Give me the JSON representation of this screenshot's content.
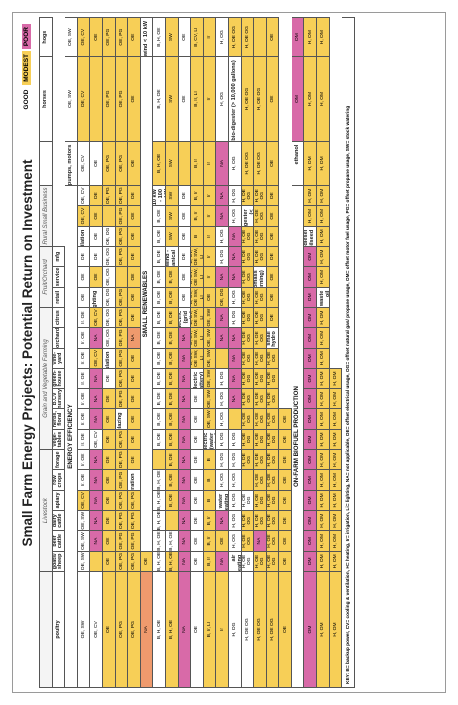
{
  "title": "Small Farm Energy Projects: Potential Return on Investment",
  "legend": {
    "good": "GOOD",
    "modest": "MODEST",
    "poor": "POOR",
    "colors": {
      "good": "#ffffff",
      "modest": "#f7cf57",
      "poor": "#d86aa8"
    }
  },
  "groups": [
    {
      "label": "",
      "span": 1
    },
    {
      "label": "Livestock",
      "span": 6
    },
    {
      "label": "Grain and Vegetable Farming",
      "span": 7
    },
    {
      "label": "Fruit/Orchard",
      "span": 3
    },
    {
      "label": "Rural Small Business",
      "span": 3
    }
  ],
  "columns": [
    "",
    "horses",
    "hogs",
    "poultry",
    "goats/ sheep",
    "beef cattle",
    "dairy cattle",
    "apiary",
    "row crops",
    "forage",
    "vege- tables",
    "herbs, floral",
    "B.CV nursery",
    "green- house",
    "vine- yard",
    "orchard",
    "citrus",
    "retail",
    "service",
    "mfg"
  ],
  "sections": [
    {
      "name": "ENERGY EFFICIENCY",
      "rows": [
        {
          "label": "pumps, motors",
          "cells": [
            "OE, SW",
            "OE, SW",
            "OE, SW",
            "OE, SW",
            "OE, SW",
            "OE, SW",
            "OE, CV",
            "Ir. OE",
            "Ir. OE",
            "Ir. OE",
            "Ir. OE",
            "Ir. OE",
            "Ir. OE",
            "Ir. OE",
            "Ir. OE",
            "Ir. OE",
            "OE",
            "OE",
            "OE"
          ],
          "ratings": [
            "g",
            "g",
            "g",
            "g",
            "g",
            "g",
            "m",
            "g",
            "g",
            "g",
            "g",
            "g",
            "g",
            "g",
            "g",
            "g",
            "g",
            "g",
            "g"
          ]
        },
        {
          "label": "ventilation",
          "cells": [
            "OE, CV",
            "OE, CV",
            "OE, CV",
            "OE, CV",
            "OE, CV",
            "OE, CV",
            "",
            "NA",
            "NA",
            "NA",
            "NA",
            "NA",
            "OE, CV",
            "NA",
            "NA",
            "NA",
            "OE, CV",
            "NA",
            "OE, CV"
          ],
          "ratings": [
            "m",
            "g",
            "g",
            "m",
            "m",
            "g",
            "m",
            "p",
            "p",
            "p",
            "p",
            "p",
            "g",
            "p",
            "p",
            "p",
            "m",
            "p",
            "m"
          ]
        },
        {
          "label": "lighting",
          "cells": [
            "OE",
            "OE",
            "OE",
            "OE",
            "OE",
            "OE",
            "",
            "OE",
            "OE",
            "OE",
            "OE",
            "OE",
            "OE",
            "OE",
            "OE",
            "OE",
            "OE",
            "OE",
            "OE"
          ],
          "ratings": [
            "m",
            "g",
            "g",
            "m",
            "m",
            "g",
            "m",
            "m",
            "m",
            "m",
            "m",
            "m",
            "m",
            "m",
            "m",
            "m",
            "m",
            "m",
            "g"
          ]
        },
        {
          "label": "insulation",
          "cells": [
            "OE, OG",
            "OE, OG",
            "OE, OG",
            "OE, OG",
            "OE, OG",
            "OE, OG",
            "",
            "OE, PG",
            "OE, PG",
            "OE, PG",
            "OE, PG",
            "OE, PG",
            "OE, PG",
            "OE, PG",
            "OE, PG",
            "OE, PG",
            "OE, PG",
            "OE, PG",
            "OE, PG"
          ],
          "ratings": [
            "g",
            "g",
            "g",
            "g",
            "g",
            "g",
            "m",
            "m",
            "m",
            "m",
            "m",
            "m",
            "m",
            "m",
            "m",
            "m",
            "m",
            "m",
            "m"
          ]
        },
        {
          "label": "glazing",
          "cells": [
            "OE, PG",
            "OE, PG",
            "OE, PG",
            "OE, PG",
            "OE, PG",
            "OE, PG",
            "",
            "OE, PG",
            "OE, PG",
            "OE, PG",
            "OE, PG",
            "OE, PG",
            "OE, PG",
            "OE, PG",
            "OE, PG",
            "OE, PG",
            "OE, PG",
            "OE, PG",
            "OE, PG"
          ],
          "ratings": [
            "m",
            "m",
            "m",
            "m",
            "m",
            "m",
            "m",
            "m",
            "m",
            "m",
            "m",
            "m",
            "m",
            "m",
            "m",
            "m",
            "m",
            "m",
            "m"
          ]
        },
        {
          "label": "refrigeration",
          "cells": [
            "OE",
            "OE",
            "OE",
            "OE",
            "OE",
            "OE",
            "NA",
            "OE",
            "OE",
            "OE",
            "OE",
            "OE",
            "OE",
            "OE",
            "OE",
            "OE",
            "OE",
            "NA",
            "OE"
          ],
          "ratings": [
            "m",
            "m",
            "m",
            "m",
            "m",
            "m",
            "o",
            "m",
            "m",
            "m",
            "m",
            "m",
            "m",
            "m",
            "m",
            "m",
            "m",
            "o",
            "m"
          ]
        }
      ]
    },
    {
      "name": "SMALL RENEWABLES",
      "rows": [
        {
          "label": "wind < 10 kW",
          "cells": [
            "B, H, OE",
            "B, H, OE",
            "B, H, OE",
            "B, H, OE",
            "B, H, OE",
            "B, H, OE",
            "",
            "B, OE",
            "B, OE",
            "B, OE",
            "B, OE",
            "B, OE",
            "B, OE",
            "B, OE",
            "B, OE",
            "B, OE",
            "B, OE",
            "B, OE",
            "B, OE"
          ],
          "ratings": [
            "g",
            "g",
            "g",
            "g",
            "g",
            "g",
            "m",
            "g",
            "g",
            "g",
            "g",
            "g",
            "g",
            "g",
            "g",
            "g",
            "g",
            "g",
            "g"
          ]
        },
        {
          "label": "wind 10 kW - 100 kW",
          "cells": [
            "B, H, OE",
            "B, H, OE",
            "B, H, OE",
            "B, H, OE",
            "B, H, OE",
            "B, H, OE",
            "",
            "B, OE",
            "B, OE",
            "B, OE",
            "B, OE",
            "B, OE",
            "B, OE",
            "B, OE",
            "B, OE",
            "B, OE",
            "B, OE",
            "B, OE",
            "B, OE"
          ],
          "ratings": [
            "m",
            "g",
            "g",
            "m",
            "m",
            "g",
            "m",
            "m",
            "m",
            "m",
            "m",
            "m",
            "m",
            "m",
            "m",
            "m",
            "m",
            "m",
            "m"
          ]
        },
        {
          "label": "wind - mechanical",
          "cells": [
            "SW",
            "SW",
            "SW",
            "SW",
            "SW",
            "SW",
            "NA",
            "NA",
            "NA",
            "NA",
            "NA",
            "NA",
            "NA",
            "NA",
            "NA",
            "NA",
            "NA",
            "NA",
            "NA"
          ],
          "ratings": [
            "m",
            "m",
            "m",
            "m",
            "m",
            "m",
            "p",
            "p",
            "p",
            "p",
            "p",
            "p",
            "p",
            "p",
            "p",
            "p",
            "p",
            "p",
            "p"
          ]
        },
        {
          "label": "solar electric (grid tie)",
          "cells": [
            "OE",
            "OE",
            "OE",
            "OE",
            "OE",
            "OE",
            "",
            "OE",
            "OE",
            "OE",
            "OE",
            "OE",
            "OE",
            "OE",
            "OE",
            "OE",
            "OE",
            "OE",
            "OE"
          ],
          "ratings": [
            "g",
            "g",
            "g",
            "g",
            "g",
            "g",
            "m",
            "g",
            "g",
            "g",
            "g",
            "g",
            "g",
            "g",
            "g",
            "g",
            "g",
            "g",
            "g"
          ]
        },
        {
          "label": "solar electric (battery)",
          "cells": [
            "B, CV, OE SW, LI",
            "B, CV, OE SW, LI",
            "B, CV, OE SW, LI",
            "B, CV, OE SW, LI",
            "B, CV, OE SW, LI",
            "B, CV, OE SW, LI",
            "B",
            "B, Ir",
            "B, Ir",
            "B, Ir",
            "B, Ir, LI",
            "B, CV, LI",
            "B, Ir, LI",
            "B, Ir",
            "B, Ir",
            "B, Ir",
            "B",
            "B",
            "B"
          ],
          "ratings": [
            "m",
            "m",
            "m",
            "m",
            "m",
            "m",
            "m",
            "m",
            "m",
            "m",
            "m",
            "m",
            "m",
            "m",
            "m",
            "m",
            "m",
            "m",
            "m"
          ]
        },
        {
          "label": "solar electric (water pumping)",
          "cells": [
            "OE, SW",
            "OE, SW",
            "OE, SW",
            "OE, SW",
            "OE, SW",
            "OE, SW",
            "OE",
            "Ir",
            "Ir",
            "Ir",
            "Ir",
            "Ir",
            "Ir",
            "Ir",
            "Ir",
            "Ir",
            "NA",
            "OE",
            "NA"
          ],
          "ratings": [
            "m",
            "m",
            "m",
            "m",
            "m",
            "m",
            "m",
            "m",
            "m",
            "m",
            "m",
            "m",
            "m",
            "m",
            "m",
            "m",
            "p",
            "m",
            "p"
          ]
        },
        {
          "label": "solar water heating",
          "cells": [
            "H, OG",
            "H, OG",
            "H, OG",
            "H, OG",
            "H, OG",
            "H, OG",
            "",
            "NA",
            "NA",
            "OE, OG",
            "NA",
            "H, OG",
            "H, OG",
            "NA",
            "NA",
            "NA",
            "H, OG",
            "H, OG",
            "H, OG"
          ],
          "ratings": [
            "g",
            "g",
            "g",
            "g",
            "g",
            "g",
            "m",
            "p",
            "p",
            "m",
            "p",
            "g",
            "g",
            "p",
            "p",
            "p",
            "g",
            "g",
            "g"
          ]
        },
        {
          "label": "solar air heating",
          "cells": [
            "H, OG",
            "H, OG",
            "H, OG",
            "H, OG",
            "H, OG",
            "H, OG",
            "",
            "NA",
            "NA",
            "NA",
            "NA",
            "H, OG",
            "H, OG",
            "NA",
            "NA",
            "NA",
            "H, OG",
            "H, OG",
            "H, OG"
          ],
          "ratings": [
            "g",
            "g",
            "g",
            "g",
            "g",
            "g",
            "m",
            "p",
            "p",
            "p",
            "p",
            "g",
            "g",
            "p",
            "p",
            "p",
            "g",
            "g",
            "g"
          ]
        },
        {
          "label": "bio-digester (> 10,000 gallons)",
          "cells": [
            "H, OE OG",
            "H, OE OG",
            "H, OE OG",
            "H, OE OG",
            "H, OE OG",
            "H, OE OG",
            "",
            "H, OE OG",
            "H, OE OG",
            "H, OE OG",
            "H, OE OG",
            "H, OE OG",
            "H, OE OG",
            "H, OE OG",
            "H, OE OG",
            "H, OE OG",
            "H, OE OG",
            "H, OE OG",
            "H, OE OG"
          ],
          "ratings": [
            "m",
            "g",
            "g",
            "m",
            "m",
            "g",
            "m",
            "m",
            "m",
            "m",
            "m",
            "m",
            "m",
            "m",
            "m",
            "m",
            "m",
            "m",
            "m"
          ]
        },
        {
          "label": "micro-scale bio-digester (< 10,000 gallons)",
          "cells": [
            "H, OE OG",
            "H, OE OG",
            "H, OE OG",
            "H, OE OG",
            "H, OE OG",
            "H, OE OG",
            "NA",
            "H, OE OG",
            "H, OE OG",
            "H, OE OG",
            "H, OE OG",
            "H, OE OG",
            "H, OE OG",
            "H, OE OG",
            "H, OE OG",
            "H, OE OG",
            "H, OE OG",
            "H, OE OG",
            "H, OE OG"
          ],
          "ratings": [
            "m",
            "m",
            "m",
            "m",
            "m",
            "m",
            "p",
            "m",
            "m",
            "m",
            "m",
            "m",
            "m",
            "m",
            "m",
            "m",
            "m",
            "m",
            "m"
          ]
        },
        {
          "label": "biomass (burning)",
          "cells": [
            "H, OE OG",
            "H, OE OG",
            "H, OE OG",
            "H, OE OG",
            "H, OE OG",
            "H, OE OG",
            "",
            "H, OE OG",
            "H, OE OG",
            "H, OE OG",
            "H, OE OG",
            "H, OE OG",
            "H, OE OG",
            "H, OE OG",
            "H, OE OG",
            "H, OE OG",
            "H, OE OG",
            "H, OE OG",
            "H, OE OG"
          ],
          "ratings": [
            "m",
            "m",
            "m",
            "m",
            "m",
            "m",
            "m",
            "m",
            "m",
            "m",
            "m",
            "m",
            "m",
            "m",
            "m",
            "m",
            "m",
            "m",
            "m"
          ]
        },
        {
          "label": "small hydro",
          "cells": [
            "OE",
            "OE",
            "OE",
            "OE",
            "OE",
            "OE",
            "OE",
            "OE",
            "OE",
            "OE",
            "OE",
            "OE",
            "OE",
            "OE",
            "OE",
            "OE",
            "OE",
            "OE",
            "OE"
          ],
          "ratings": [
            "m",
            "m",
            "m",
            "m",
            "m",
            "m",
            "m",
            "m",
            "m",
            "m",
            "m",
            "m",
            "m",
            "m",
            "m",
            "m",
            "m",
            "m",
            "m"
          ]
        }
      ]
    },
    {
      "name": "ON-FARM BIOFUEL PRODUCTION",
      "rows": [
        {
          "label": "ethanol",
          "cells": [
            "OM",
            "OM",
            "OM",
            "OM",
            "OM",
            "OM",
            "OM",
            "OM",
            "OM",
            "OM",
            "OM",
            "OM",
            "OM",
            "OM",
            "OM",
            "OM",
            "OM",
            "OM",
            "OM"
          ],
          "ratings": [
            "p",
            "p",
            "p",
            "p",
            "p",
            "p",
            "p",
            "p",
            "p",
            "p",
            "p",
            "p",
            "p",
            "p",
            "p",
            "p",
            "p",
            "p",
            "p"
          ]
        },
        {
          "label": "biodiesel - oilseed",
          "cells": [
            "H, OM",
            "H, OM",
            "H, OM",
            "H, OM",
            "H, OM",
            "H, OM",
            "H, OM",
            "H, OM",
            "H, OM",
            "H, OM",
            "H, OM",
            "H, OM",
            "H, OM",
            "H, OM",
            "H, OM",
            "H, OM",
            "H, OM",
            "H, OM",
            "H, OM"
          ],
          "ratings": [
            "m",
            "m",
            "m",
            "m",
            "m",
            "m",
            "m",
            "m",
            "m",
            "m",
            "m",
            "m",
            "m",
            "m",
            "m",
            "m",
            "m",
            "m",
            "m"
          ]
        },
        {
          "label": "biodiesel - waste oil",
          "cells": [
            "H, OM",
            "H, OM",
            "H, OM",
            "H, OM",
            "H, OM",
            "H, OM",
            "H, OM",
            "H, OM",
            "H, OM",
            "H, OM",
            "H, OM",
            "H, OM",
            "H, OM",
            "H, OM",
            "H, OM",
            "H, OM",
            "H, OM",
            "H, OM",
            "H, OM"
          ],
          "ratings": [
            "m",
            "m",
            "m",
            "m",
            "m",
            "m",
            "m",
            "m",
            "m",
            "m",
            "m",
            "m",
            "m",
            "m",
            "m",
            "m",
            "m",
            "m",
            "m"
          ]
        }
      ]
    }
  ],
  "key": "KEY: B= backup power, CV= cooling & ventilation, H= heating, Ir= irrigation, Li= lighting, NA= not applicable, OE= offset electrical usage, OG= offset natural gas/ propane usage, OM= offset motor fuel usage, PG= offset propane usage, SW= stock watering"
}
